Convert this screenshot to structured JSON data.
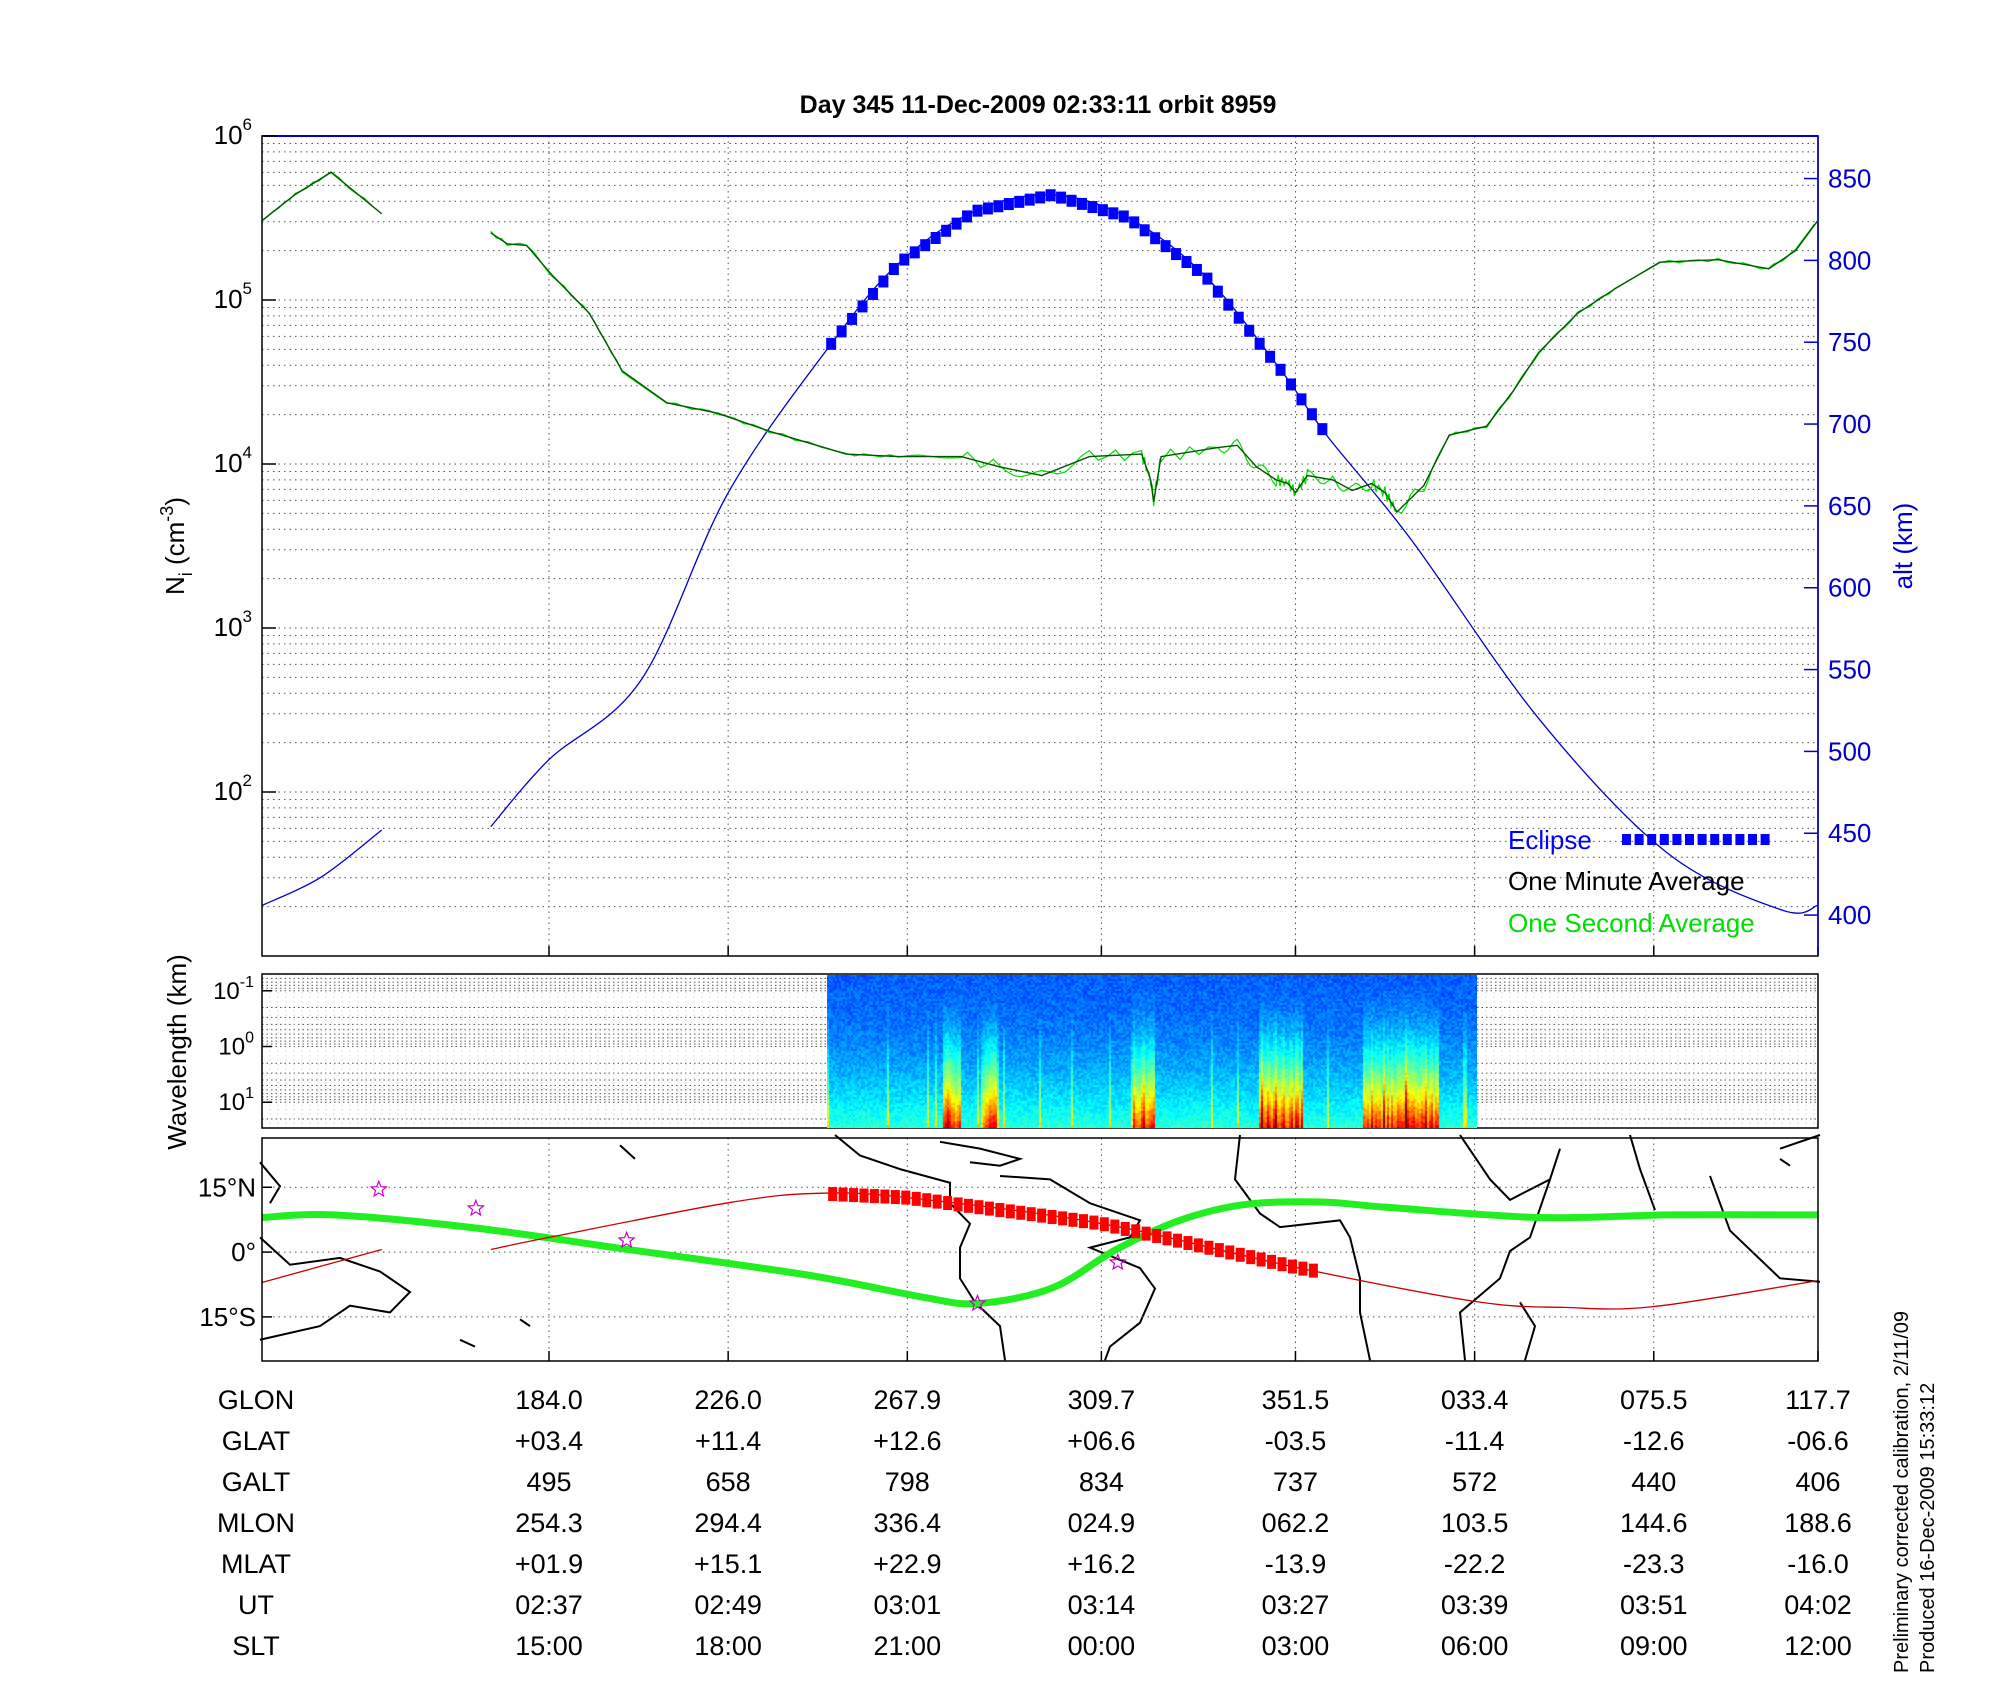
{
  "title": "Day 345  11-Dec-2009 02:33:11   orbit 8959",
  "footer": {
    "line1": "Preliminary corrected calibration, 2/11/09",
    "line2": "Produced 16-Dec-2009 15:33:12"
  },
  "colors": {
    "axis": "#000000",
    "alt_axis": "#0000cc",
    "eclipse": "#0000ff",
    "one_minute": "#005500",
    "one_second": "#00dd00",
    "track": "#cc0000",
    "track_eclipse": "#ff0000",
    "dip_equator": "#22ee22",
    "stars": "#cc00cc"
  },
  "chart_data": [
    {
      "type": "line",
      "panel": "ion density and altitude",
      "ylabel": "N_i (cm^-3)",
      "ylabel_parts": {
        "main": "N",
        "sub": "i",
        "pre": " (cm",
        "sup": "-3",
        "post": ")"
      },
      "yscale": "log",
      "ylim": [
        10,
        1000000
      ],
      "yticks": [
        {
          "base": "10",
          "exp": "6"
        },
        {
          "base": "10",
          "exp": "5"
        },
        {
          "base": "10",
          "exp": "4"
        },
        {
          "base": "10",
          "exp": "3"
        },
        {
          "base": "10",
          "exp": "2"
        }
      ],
      "y2label": "alt (km)",
      "y2lim": [
        375,
        876
      ],
      "y2ticks": [
        "850",
        "800",
        "750",
        "700",
        "650",
        "600",
        "550",
        "500",
        "450",
        "400"
      ],
      "grid": true,
      "legend_position": "bottom-right",
      "legend": {
        "eclipse": "Eclipse",
        "one_minute": "One Minute Average",
        "one_second": "One Second Average"
      },
      "xlim_ut": [
        "02:17:48",
        "04:02:00"
      ],
      "series": [
        {
          "name": "One Minute Average",
          "segments": [
            [
              [
                "02:17:48",
                306000
              ],
              [
                "02:20:00",
                440000
              ],
              [
                "02:22:24",
                600000
              ],
              [
                "02:25:48",
                335000
              ]
            ],
            [
              [
                "02:33:06",
                257000
              ],
              [
                "02:34:12",
                220000
              ],
              [
                "02:35:30",
                215000
              ],
              [
                "02:37:12",
                142000
              ],
              [
                "02:39:42",
                83000
              ],
              [
                "02:41:54",
                37000
              ],
              [
                "02:44:54",
                23600
              ],
              [
                "02:48:18",
                20400
              ],
              [
                "02:51:48",
                15800
              ],
              [
                "02:56:54",
                11500
              ],
              [
                "03:00:24",
                11100
              ],
              [
                "03:04:36",
                11100
              ],
              [
                "03:07:12",
                9600
              ],
              [
                "03:10:00",
                8500
              ],
              [
                "03:13:12",
                11100
              ],
              [
                "03:16:42",
                11500
              ],
              [
                "03:17:18",
                8000
              ],
              [
                "03:17:30",
                5900
              ],
              [
                "03:18:00",
                11100
              ],
              [
                "03:21:48",
                12600
              ],
              [
                "03:23:06",
                13000
              ],
              [
                "03:24:24",
                9600
              ],
              [
                "03:25:42",
                8000
              ],
              [
                "03:26:30",
                7600
              ],
              [
                "03:27:00",
                6700
              ],
              [
                "03:27:48",
                8500
              ],
              [
                "03:29:30",
                8000
              ],
              [
                "03:30:48",
                6900
              ],
              [
                "03:32:06",
                7600
              ],
              [
                "03:33:00",
                6700
              ],
              [
                "03:33:48",
                5100
              ],
              [
                "03:35:36",
                7400
              ],
              [
                "03:37:18",
                15000
              ],
              [
                "03:39:48",
                17000
              ],
              [
                "03:41:36",
                28000
              ],
              [
                "03:43:18",
                48000
              ],
              [
                "03:45:54",
                83000
              ],
              [
                "03:48:24",
                117000
              ],
              [
                "03:51:24",
                170000
              ],
              [
                "03:55:18",
                176000
              ],
              [
                "03:58:42",
                155000
              ],
              [
                "04:00:30",
                200000
              ],
              [
                "04:02:00",
                306000
              ]
            ]
          ]
        },
        {
          "name": "Eclipse",
          "axis": "alt",
          "ut_range": [
            "02:55:54",
            "03:29:06"
          ]
        },
        {
          "name": "alt",
          "axis": "alt",
          "segments": [
            [
              [
                "02:17:48",
                406
              ],
              [
                "02:21:42",
                423
              ],
              [
                "02:25:48",
                452
              ]
            ],
            [
              [
                "02:33:06",
                454
              ],
              [
                "02:37:00",
                495
              ],
              [
                "02:43:12",
                544
              ],
              [
                "02:49:00",
                658
              ],
              [
                "02:55:54",
                749
              ],
              [
                "03:00:24",
                798
              ],
              [
                "03:05:30",
                830
              ],
              [
                "03:10:42",
                840
              ],
              [
                "03:15:48",
                826
              ],
              [
                "03:21:00",
                790
              ],
              [
                "03:26:06",
                732
              ],
              [
                "03:29:06",
                693
              ],
              [
                "03:34:42",
                630
              ],
              [
                "03:43:18",
                520
              ],
              [
                "03:51:54",
                438
              ],
              [
                "03:59:36",
                403
              ],
              [
                "04:02:00",
                406
              ]
            ]
          ]
        }
      ]
    },
    {
      "type": "heatmap",
      "panel": "spectrogram",
      "ylabel": "Wavelength (km)",
      "yscale": "log",
      "yreversed": true,
      "ylim": [
        0.05,
        29
      ],
      "yticks": [
        {
          "base": "10",
          "exp": "-1"
        },
        {
          "base": "10",
          "exp": "0"
        },
        {
          "base": "10",
          "exp": "1"
        }
      ],
      "ut_range": [
        "02:55:38",
        "03:39:10"
      ],
      "enhanced_intervals_ut": [
        [
          "03:03:24",
          "03:04:30"
        ],
        [
          "03:06:00",
          "03:07:00"
        ],
        [
          "03:16:00",
          "03:17:30"
        ],
        [
          "03:24:30",
          "03:27:30"
        ],
        [
          "03:31:30",
          "03:36:30"
        ]
      ]
    },
    {
      "type": "line",
      "panel": "map",
      "yticks": [
        "15°N",
        "0°",
        "15°S"
      ],
      "ylim": [
        -25.2,
        26.4
      ],
      "series": [
        {
          "name": "track",
          "segments": [
            [
              [
                "02:17:48",
                -7.0
              ],
              [
                "02:25:48",
                0.6
              ]
            ],
            [
              [
                "02:33:06",
                0.6
              ],
              [
                "02:37:00",
                3.4
              ],
              [
                "02:49:00",
                11.4
              ],
              [
                "02:55:00",
                13.6
              ],
              [
                "03:01:00",
                12.6
              ],
              [
                "03:14:00",
                6.6
              ],
              [
                "03:27:00",
                -3.5
              ],
              [
                "03:39:00",
                -11.4
              ],
              [
                "03:45:00",
                -12.8
              ],
              [
                "03:51:00",
                -12.6
              ],
              [
                "04:02:00",
                -6.6
              ]
            ]
          ]
        },
        {
          "name": "dip_equator",
          "points": [
            [
              "02:17:48",
              8.0
            ],
            [
              "02:22:36",
              8.6
            ],
            [
              "02:32:00",
              5.6
            ],
            [
              "02:42:18",
              0.6
            ],
            [
              "02:54:18",
              -5.3
            ],
            [
              "03:02:00",
              -10.4
            ],
            [
              "03:05:42",
              -11.9
            ],
            [
              "03:10:42",
              -8.3
            ],
            [
              "03:15:00",
              0.6
            ],
            [
              "03:19:18",
              7.4
            ],
            [
              "03:23:36",
              11.0
            ],
            [
              "03:28:42",
              11.6
            ],
            [
              "03:33:00",
              10.4
            ],
            [
              "03:43:18",
              8.0
            ],
            [
              "03:51:54",
              8.6
            ],
            [
              "04:02:00",
              8.6
            ]
          ]
        },
        {
          "name": "stars",
          "points": [
            [
              "02:25:36",
              14.5
            ],
            [
              "02:32:06",
              10.1
            ],
            [
              "02:42:12",
              2.7
            ],
            [
              "03:05:42",
              -11.9
            ],
            [
              "03:15:06",
              -2.4
            ]
          ]
        }
      ],
      "eclipse_ut_range": [
        "02:56:00",
        "03:28:48"
      ]
    }
  ],
  "table": {
    "ticks_ut": [
      "02:37",
      "02:49",
      "03:01",
      "03:14",
      "03:27",
      "03:39",
      "03:51",
      "04:02"
    ],
    "rows": [
      {
        "label": "GLON",
        "values": [
          "184.0",
          "226.0",
          "267.9",
          "309.7",
          "351.5",
          "033.4",
          "075.5",
          "117.7"
        ]
      },
      {
        "label": "GLAT",
        "values": [
          "+03.4",
          "+11.4",
          "+12.6",
          "+06.6",
          "-03.5",
          "-11.4",
          "-12.6",
          "-06.6"
        ]
      },
      {
        "label": "GALT",
        "values": [
          "495",
          "658",
          "798",
          "834",
          "737",
          "572",
          "440",
          "406"
        ]
      },
      {
        "label": "MLON",
        "values": [
          "254.3",
          "294.4",
          "336.4",
          "024.9",
          "062.2",
          "103.5",
          "144.6",
          "188.6"
        ]
      },
      {
        "label": "MLAT",
        "values": [
          "+01.9",
          "+15.1",
          "+22.9",
          "+16.2",
          "-13.9",
          "-22.2",
          "-23.3",
          "-16.0"
        ]
      },
      {
        "label": "UT",
        "values": [
          "02:37",
          "02:49",
          "03:01",
          "03:14",
          "03:27",
          "03:39",
          "03:51",
          "04:02"
        ]
      },
      {
        "label": "SLT",
        "values": [
          "15:00",
          "18:00",
          "21:00",
          "00:00",
          "03:00",
          "06:00",
          "09:00",
          "12:00"
        ]
      }
    ]
  }
}
